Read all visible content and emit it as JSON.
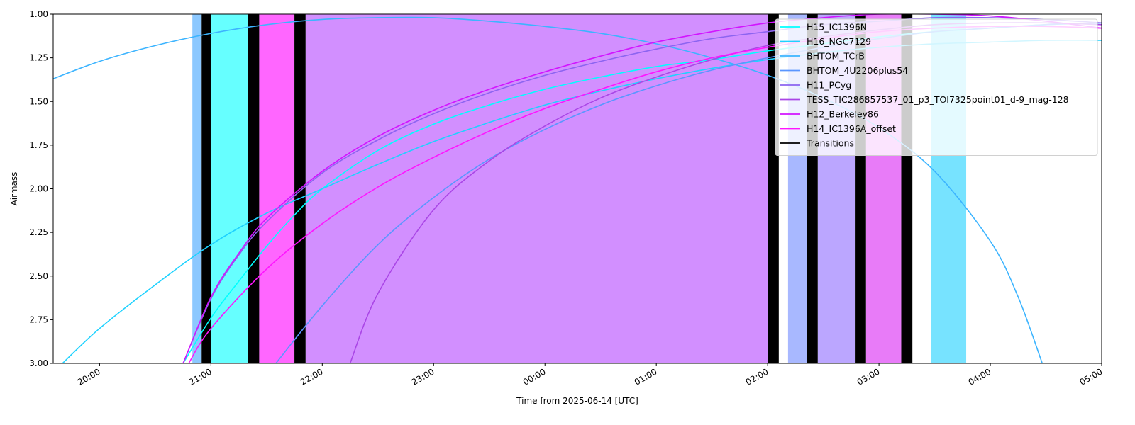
{
  "chart_data": {
    "type": "line",
    "title": "",
    "xlabel": "Time from 2025-06-14 [UTC]",
    "ylabel": "Airmass",
    "xlim": [
      "2025-06-14T19:35",
      "2025-06-15T05:00"
    ],
    "ylim": [
      3.0,
      1.0
    ],
    "y_inverted": true,
    "x_ticks": [
      "20:00",
      "21:00",
      "22:00",
      "23:00",
      "00:00",
      "01:00",
      "02:00",
      "03:00",
      "04:00",
      "05:00"
    ],
    "y_ticks": [
      "1.00",
      "1.25",
      "1.50",
      "1.75",
      "2.00",
      "2.25",
      "2.50",
      "2.75",
      "3.00"
    ],
    "grid": false,
    "legend_position": "upper-right",
    "series": [
      {
        "name": "H15_IC1396N",
        "color": "#00ffff",
        "points": [
          [
            "2025-06-14T20:45",
            3.0
          ],
          [
            "2025-06-14T21:00",
            2.74
          ],
          [
            "2025-06-14T21:15",
            2.53
          ],
          [
            "2025-06-14T21:30",
            2.33
          ],
          [
            "2025-06-14T21:45",
            2.15
          ],
          [
            "2025-06-14T22:00",
            2.0
          ],
          [
            "2025-06-14T22:30",
            1.78
          ],
          [
            "2025-06-14T23:00",
            1.63
          ],
          [
            "2025-06-14T23:30",
            1.52
          ],
          [
            "2025-06-15T00:00",
            1.43
          ],
          [
            "2025-06-15T00:30",
            1.36
          ],
          [
            "2025-06-15T01:00",
            1.3
          ],
          [
            "2025-06-15T01:30",
            1.26
          ],
          [
            "2025-06-15T02:00",
            1.21
          ],
          [
            "2025-06-15T02:30",
            1.17
          ],
          [
            "2025-06-15T03:00",
            1.13
          ],
          [
            "2025-06-15T03:30",
            1.1
          ],
          [
            "2025-06-15T04:00",
            1.08
          ],
          [
            "2025-06-15T04:30",
            1.06
          ],
          [
            "2025-06-15T05:00",
            1.05
          ]
        ]
      },
      {
        "name": "H16_NGC7129",
        "color": "#1ed2ff",
        "points": [
          [
            "2025-06-14T19:40",
            3.0
          ],
          [
            "2025-06-14T20:00",
            2.8
          ],
          [
            "2025-06-14T20:30",
            2.55
          ],
          [
            "2025-06-14T21:00",
            2.32
          ],
          [
            "2025-06-14T21:30",
            2.14
          ],
          [
            "2025-06-14T22:00",
            2.0
          ],
          [
            "2025-06-14T22:30",
            1.86
          ],
          [
            "2025-06-14T23:00",
            1.73
          ],
          [
            "2025-06-14T23:30",
            1.62
          ],
          [
            "2025-06-15T00:00",
            1.52
          ],
          [
            "2025-06-15T00:30",
            1.44
          ],
          [
            "2025-06-15T01:00",
            1.37
          ],
          [
            "2025-06-15T01:30",
            1.31
          ],
          [
            "2025-06-15T02:00",
            1.26
          ],
          [
            "2025-06-15T02:30",
            1.22
          ],
          [
            "2025-06-15T03:00",
            1.19
          ],
          [
            "2025-06-15T03:30",
            1.17
          ],
          [
            "2025-06-15T04:00",
            1.16
          ],
          [
            "2025-06-15T04:30",
            1.15
          ],
          [
            "2025-06-15T05:00",
            1.15
          ]
        ]
      },
      {
        "name": "BHTOM_TCrB",
        "color": "#3cb4ff",
        "points": [
          [
            "2025-06-14T19:35",
            1.37
          ],
          [
            "2025-06-14T20:00",
            1.27
          ],
          [
            "2025-06-14T20:30",
            1.18
          ],
          [
            "2025-06-14T21:00",
            1.11
          ],
          [
            "2025-06-14T21:30",
            1.06
          ],
          [
            "2025-06-14T22:00",
            1.03
          ],
          [
            "2025-06-14T22:30",
            1.02
          ],
          [
            "2025-06-14T23:00",
            1.02
          ],
          [
            "2025-06-14T23:30",
            1.04
          ],
          [
            "2025-06-15T00:00",
            1.07
          ],
          [
            "2025-06-15T00:30",
            1.11
          ],
          [
            "2025-06-15T01:00",
            1.17
          ],
          [
            "2025-06-15T01:30",
            1.25
          ],
          [
            "2025-06-15T02:00",
            1.35
          ],
          [
            "2025-06-15T02:30",
            1.48
          ],
          [
            "2025-06-15T03:00",
            1.65
          ],
          [
            "2025-06-15T03:30",
            1.9
          ],
          [
            "2025-06-15T04:00",
            2.3
          ],
          [
            "2025-06-15T04:15",
            2.62
          ],
          [
            "2025-06-15T04:28",
            3.0
          ]
        ]
      },
      {
        "name": "BHTOM_4U2206plus54",
        "color": "#5a96ff",
        "points": [
          [
            "2025-06-14T21:35",
            3.0
          ],
          [
            "2025-06-14T22:00",
            2.67
          ],
          [
            "2025-06-14T22:30",
            2.32
          ],
          [
            "2025-06-14T23:00",
            2.05
          ],
          [
            "2025-06-14T23:30",
            1.83
          ],
          [
            "2025-06-15T00:00",
            1.66
          ],
          [
            "2025-06-15T00:30",
            1.52
          ],
          [
            "2025-06-15T01:00",
            1.41
          ],
          [
            "2025-06-15T01:30",
            1.32
          ],
          [
            "2025-06-15T02:00",
            1.25
          ],
          [
            "2025-06-15T02:30",
            1.19
          ],
          [
            "2025-06-15T03:00",
            1.14
          ],
          [
            "2025-06-15T03:30",
            1.1
          ],
          [
            "2025-06-15T04:00",
            1.08
          ],
          [
            "2025-06-15T04:30",
            1.06
          ],
          [
            "2025-06-15T05:00",
            1.05
          ]
        ]
      },
      {
        "name": "H11_PCyg",
        "color": "#8c64f0",
        "points": [
          [
            "2025-06-14T20:45",
            3.0
          ],
          [
            "2025-06-14T21:00",
            2.63
          ],
          [
            "2025-06-14T21:15",
            2.38
          ],
          [
            "2025-06-14T21:30",
            2.19
          ],
          [
            "2025-06-14T22:00",
            1.91
          ],
          [
            "2025-06-14T22:30",
            1.72
          ],
          [
            "2025-06-14T23:00",
            1.57
          ],
          [
            "2025-06-14T23:30",
            1.45
          ],
          [
            "2025-06-15T00:00",
            1.35
          ],
          [
            "2025-06-15T00:30",
            1.27
          ],
          [
            "2025-06-15T01:00",
            1.2
          ],
          [
            "2025-06-15T01:30",
            1.14
          ],
          [
            "2025-06-15T02:00",
            1.1
          ],
          [
            "2025-06-15T02:30",
            1.06
          ],
          [
            "2025-06-15T03:00",
            1.04
          ],
          [
            "2025-06-15T03:30",
            1.02
          ],
          [
            "2025-06-15T04:00",
            1.02
          ],
          [
            "2025-06-15T04:30",
            1.03
          ],
          [
            "2025-06-15T05:00",
            1.05
          ]
        ]
      },
      {
        "name": "TESS_TIC286857537_01_p3_TOI7325point01_d-9_mag-128",
        "color": "#aa46e6",
        "points": [
          [
            "2025-06-14T22:15",
            3.0
          ],
          [
            "2025-06-14T22:30",
            2.6
          ],
          [
            "2025-06-14T23:00",
            2.12
          ],
          [
            "2025-06-14T23:30",
            1.84
          ],
          [
            "2025-06-15T00:00",
            1.64
          ],
          [
            "2025-06-15T00:30",
            1.48
          ],
          [
            "2025-06-15T01:00",
            1.36
          ],
          [
            "2025-06-15T01:30",
            1.26
          ],
          [
            "2025-06-15T02:00",
            1.18
          ],
          [
            "2025-06-15T02:30",
            1.13
          ],
          [
            "2025-06-15T03:00",
            1.09
          ],
          [
            "2025-06-15T03:30",
            1.06
          ],
          [
            "2025-06-15T04:00",
            1.05
          ],
          [
            "2025-06-15T04:30",
            1.05
          ],
          [
            "2025-06-15T05:00",
            1.06
          ]
        ]
      },
      {
        "name": "H12_Berkeley86",
        "color": "#d214ff",
        "points": [
          [
            "2025-06-14T20:45",
            3.0
          ],
          [
            "2025-06-14T21:00",
            2.62
          ],
          [
            "2025-06-14T21:15",
            2.37
          ],
          [
            "2025-06-14T21:30",
            2.17
          ],
          [
            "2025-06-14T22:00",
            1.9
          ],
          [
            "2025-06-14T22:30",
            1.7
          ],
          [
            "2025-06-14T23:00",
            1.55
          ],
          [
            "2025-06-14T23:30",
            1.43
          ],
          [
            "2025-06-15T00:00",
            1.33
          ],
          [
            "2025-06-15T00:30",
            1.24
          ],
          [
            "2025-06-15T01:00",
            1.16
          ],
          [
            "2025-06-15T01:30",
            1.1
          ],
          [
            "2025-06-15T02:00",
            1.05
          ],
          [
            "2025-06-15T02:30",
            1.02
          ],
          [
            "2025-06-15T03:00",
            1.0
          ],
          [
            "2025-06-15T03:30",
            1.0
          ],
          [
            "2025-06-15T04:00",
            1.01
          ],
          [
            "2025-06-15T04:30",
            1.04
          ],
          [
            "2025-06-15T05:00",
            1.08
          ]
        ]
      },
      {
        "name": "H14_IC1396A_offset",
        "color": "#ff14ff",
        "points": [
          [
            "2025-06-14T20:48",
            3.0
          ],
          [
            "2025-06-14T21:00",
            2.8
          ],
          [
            "2025-06-14T21:30",
            2.46
          ],
          [
            "2025-06-14T22:00",
            2.2
          ],
          [
            "2025-06-14T22:30",
            1.99
          ],
          [
            "2025-06-14T23:00",
            1.82
          ],
          [
            "2025-06-14T23:30",
            1.67
          ],
          [
            "2025-06-15T00:00",
            1.54
          ],
          [
            "2025-06-15T00:30",
            1.43
          ],
          [
            "2025-06-15T01:00",
            1.33
          ],
          [
            "2025-06-15T01:30",
            1.25
          ],
          [
            "2025-06-15T02:00",
            1.19
          ],
          [
            "2025-06-15T02:30",
            1.14
          ],
          [
            "2025-06-15T03:00",
            1.1
          ],
          [
            "2025-06-15T03:30",
            1.08
          ],
          [
            "2025-06-15T04:00",
            1.07
          ],
          [
            "2025-06-15T04:30",
            1.07
          ],
          [
            "2025-06-15T05:00",
            1.08
          ]
        ]
      }
    ],
    "transitions_legend": {
      "name": "Transitions",
      "color": "#000000"
    },
    "target_bands": [
      {
        "start": "2025-06-14T20:50",
        "end": "2025-06-14T20:55",
        "color": "#8cc8ff"
      },
      {
        "start": "2025-06-14T21:00",
        "end": "2025-06-14T21:20",
        "color": "#66ffff"
      },
      {
        "start": "2025-06-14T21:26",
        "end": "2025-06-14T21:45",
        "color": "#ff66ff"
      },
      {
        "start": "2025-06-14T21:51",
        "end": "2025-06-15T02:00",
        "color": "#d28fff"
      },
      {
        "start": "2025-06-15T02:11",
        "end": "2025-06-15T02:21",
        "color": "#a8b8ff"
      },
      {
        "start": "2025-06-15T02:27",
        "end": "2025-06-15T02:47",
        "color": "#bba6ff"
      },
      {
        "start": "2025-06-15T02:53",
        "end": "2025-06-15T03:12",
        "color": "#e87bf8"
      },
      {
        "start": "2025-06-15T03:28",
        "end": "2025-06-15T03:47",
        "color": "#77e3ff"
      }
    ],
    "transition_bands": [
      {
        "start": "2025-06-14T20:55",
        "end": "2025-06-14T21:00",
        "color": "#000000"
      },
      {
        "start": "2025-06-14T21:20",
        "end": "2025-06-14T21:26",
        "color": "#000000"
      },
      {
        "start": "2025-06-14T21:45",
        "end": "2025-06-14T21:51",
        "color": "#000000"
      },
      {
        "start": "2025-06-15T02:00",
        "end": "2025-06-15T02:06",
        "color": "#000000"
      },
      {
        "start": "2025-06-15T02:21",
        "end": "2025-06-15T02:27",
        "color": "#000000"
      },
      {
        "start": "2025-06-15T02:47",
        "end": "2025-06-15T02:53",
        "color": "#000000"
      },
      {
        "start": "2025-06-15T03:12",
        "end": "2025-06-15T03:18",
        "color": "#000000"
      }
    ]
  }
}
